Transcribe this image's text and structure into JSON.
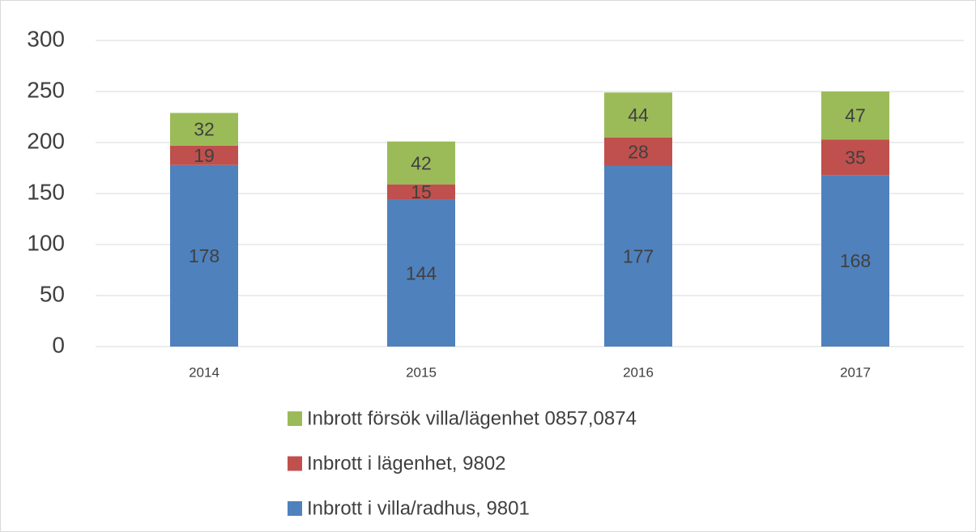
{
  "chart_data": {
    "type": "stacked_bar",
    "categories": [
      "2014",
      "2015",
      "2016",
      "2017"
    ],
    "series": [
      {
        "name": "Inbrott i villa/radhus, 9801",
        "color": "#4f81bd",
        "values": [
          178,
          144,
          177,
          168
        ]
      },
      {
        "name": "Inbrott i lägenhet, 9802",
        "color": "#c0504d",
        "values": [
          19,
          15,
          28,
          35
        ]
      },
      {
        "name": "Inbrott försök villa/lägenhet 0857,0874",
        "color": "#9bbb59",
        "values": [
          32,
          42,
          44,
          47
        ]
      }
    ],
    "ylim": [
      0,
      300
    ],
    "yticks": [
      0,
      50,
      100,
      150,
      200,
      250,
      300
    ],
    "grid": true,
    "legend": "bottom"
  }
}
